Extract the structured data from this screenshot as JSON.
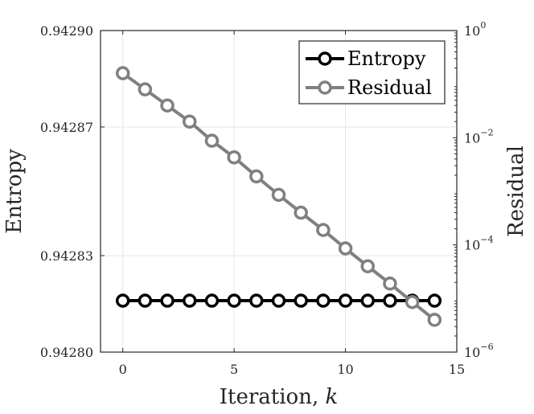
{
  "chart_data": {
    "type": "line",
    "title": "",
    "xlabel": "Iteration, k",
    "xlabel_text": "Iteration, ",
    "xlabel_var": "k",
    "x": [
      0,
      1,
      2,
      3,
      4,
      5,
      6,
      7,
      8,
      9,
      10,
      11,
      12,
      13,
      14
    ],
    "xlim": [
      -1,
      15
    ],
    "xticks": [
      0,
      5,
      10,
      15
    ],
    "xtick_labels": [
      "0",
      "5",
      "10",
      "15"
    ],
    "left_axis": {
      "label": "Entropy",
      "scale": "linear",
      "lim": [
        0.9428,
        0.9429
      ],
      "ticks": [
        0.9428,
        0.94283,
        0.94287,
        0.9429
      ],
      "tick_labels": [
        "0.94280",
        "0.94283",
        "0.94287",
        "0.94290"
      ]
    },
    "right_axis": {
      "label": "Residual",
      "scale": "log",
      "lim": [
        1e-06,
        1
      ],
      "ticks": [
        1e-06,
        0.0001,
        0.01,
        1
      ],
      "tick_labels": [
        {
          "base": "10",
          "exp": "−6"
        },
        {
          "base": "10",
          "exp": "−4"
        },
        {
          "base": "10",
          "exp": "−2"
        },
        {
          "base": "10",
          "exp": "0"
        }
      ]
    },
    "series": [
      {
        "name": "Entropy",
        "axis": "left",
        "color": "#000000",
        "marker": "open-circle",
        "values": [
          0.942816,
          0.942816,
          0.942816,
          0.942816,
          0.942816,
          0.942816,
          0.942816,
          0.942816,
          0.942816,
          0.942816,
          0.942816,
          0.942816,
          0.942816,
          0.942816,
          0.942816
        ]
      },
      {
        "name": "Residual",
        "axis": "right",
        "color": "#808080",
        "marker": "open-circle",
        "values": [
          0.16,
          0.08,
          0.04,
          0.02,
          0.0088,
          0.0043,
          0.0019,
          0.00086,
          0.0004,
          0.00019,
          8.6e-05,
          4e-05,
          1.9e-05,
          8.6e-06,
          4e-06
        ]
      }
    ],
    "legend": {
      "position": "top-right",
      "entries": [
        "Entropy",
        "Residual"
      ]
    },
    "grid": true,
    "colors": {
      "axis": "#262626",
      "grid": "#e6e6e6",
      "entropy": "#000000",
      "residual": "#808080"
    }
  }
}
